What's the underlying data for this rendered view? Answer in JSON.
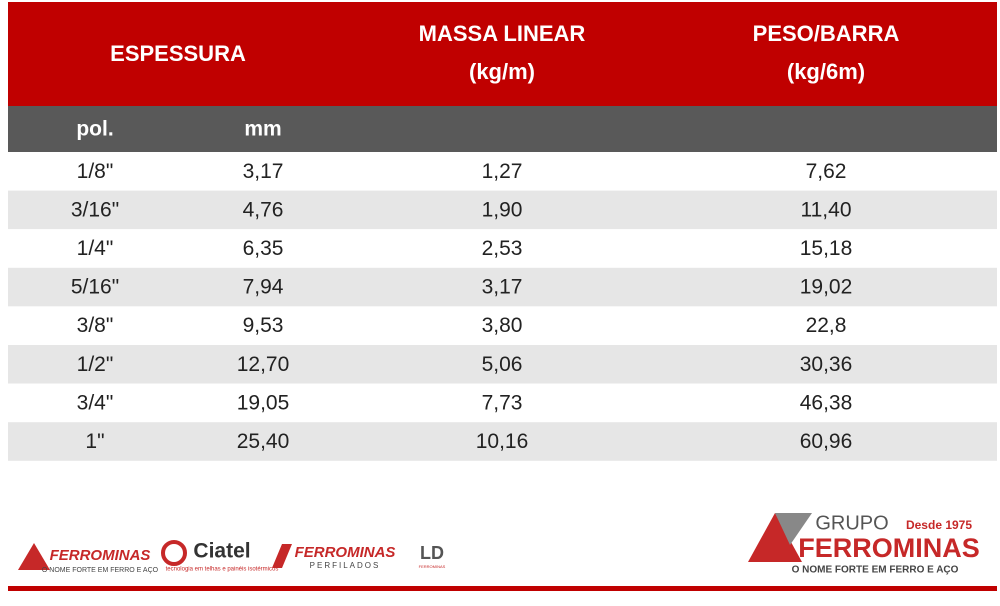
{
  "table": {
    "headers": [
      {
        "lines": [
          "ESPESSURA"
        ]
      },
      {
        "lines": [
          "MASSA LINEAR",
          "(kg/m)"
        ]
      },
      {
        "lines": [
          "PESO/BARRA",
          "(kg/6m)"
        ]
      }
    ],
    "subheaders": [
      "pol.",
      "mm"
    ],
    "rows": [
      [
        "1/8\"",
        "3,17",
        "1,27",
        "7,62"
      ],
      [
        "3/16\"",
        "4,76",
        "1,90",
        "11,40"
      ],
      [
        "1/4\"",
        "6,35",
        "2,53",
        "15,18"
      ],
      [
        "5/16\"",
        "7,94",
        "3,17",
        "19,02"
      ],
      [
        "3/8\"",
        "9,53",
        "3,80",
        "22,8"
      ],
      [
        "1/2\"",
        "12,70",
        "5,06",
        "30,36"
      ],
      [
        "3/4\"",
        "19,05",
        "7,73",
        "46,38"
      ],
      [
        "1\"",
        "25,40",
        "10,16",
        "60,96"
      ]
    ]
  },
  "footer": {
    "logos": [
      {
        "name": "FERROMINAS",
        "tagline": "O NOME FORTE EM FERRO E AÇO"
      },
      {
        "name": "Ciatel",
        "tagline": "tecnologia em telhas e painéis isotérmicos"
      },
      {
        "name": "FERROMINAS",
        "tagline": "PERFILADOS"
      },
      {
        "name": "LD",
        "tagline": "FERROMINAS"
      }
    ],
    "group": {
      "prefix": "GRUPO",
      "since": "Desde 1975",
      "name": "FERROMINAS",
      "tagline": "O NOME FORTE EM FERRO E AÇO"
    }
  }
}
